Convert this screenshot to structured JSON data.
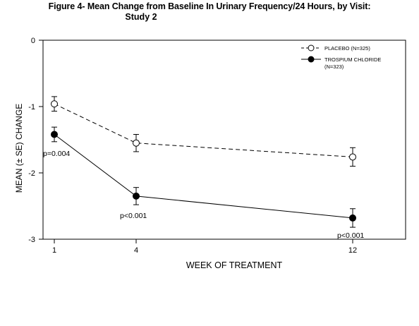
{
  "title_line1": "Figure 4- Mean Change from Baseline In Urinary Frequency/24 Hours, by Visit:",
  "title_line2": "Study 2",
  "chart_data": {
    "type": "line",
    "title": "Figure 4- Mean Change from Baseline In Urinary Frequency/24 Hours, by Visit: Study 2",
    "xlabel": "WEEK OF TREATMENT",
    "ylabel": "MEAN (± SE) CHANGE",
    "x": [
      1,
      4,
      12
    ],
    "x_ticks": [
      "1",
      "4",
      "12"
    ],
    "y_ticks": [
      "0",
      "-1",
      "-2",
      "-3"
    ],
    "ylim": [
      -3,
      0
    ],
    "grid": false,
    "legend_position": "top-right",
    "series": [
      {
        "name": "PLACEBO (N=325)",
        "marker": "open-circle",
        "line_style": "dashed",
        "values": [
          -0.96,
          -1.55,
          -1.76
        ],
        "errors": [
          0.11,
          0.13,
          0.14
        ]
      },
      {
        "name": "TROSPIUM CHLORIDE (N=323)",
        "marker": "filled-circle",
        "line_style": "solid",
        "values": [
          -1.42,
          -2.35,
          -2.68
        ],
        "errors": [
          0.11,
          0.13,
          0.14
        ]
      }
    ],
    "annotations": [
      "p=0.004",
      "p<0.001",
      "p<0.001"
    ],
    "colors": {
      "line": "#000000",
      "axis": "#000000",
      "open_marker_fill": "#ffffff"
    }
  }
}
